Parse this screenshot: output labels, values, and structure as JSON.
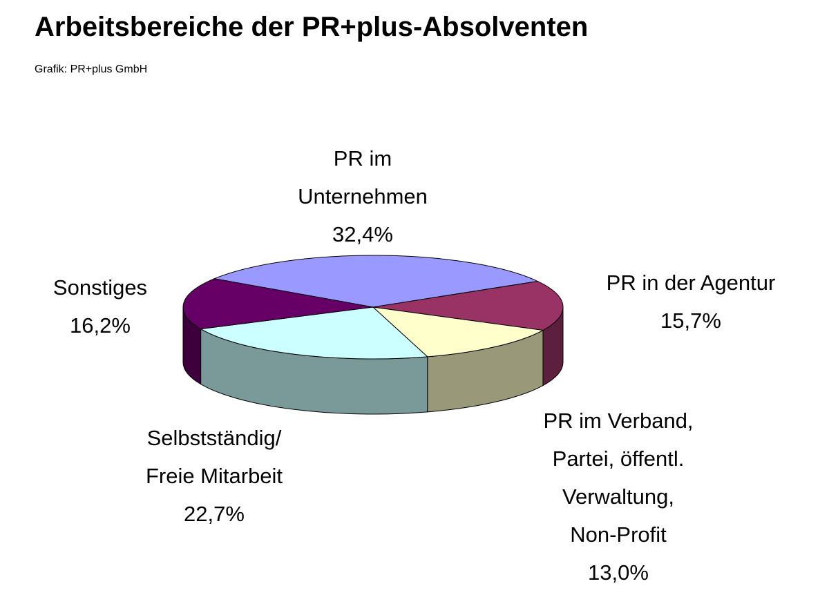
{
  "chart_data": {
    "type": "pie3d",
    "title": "Arbeitsbereiche der PR+plus-Absolventen",
    "subtitle": "Grafik: PR+plus GmbH",
    "categories": [
      "PR im\nUnternehmen",
      "PR in der Agentur",
      "PR im Verband,\nPartei, öffentl.\nVerwaltung,\nNon-Profit",
      "Selbstständig/\nFreie Mitarbeit",
      "Sonstiges"
    ],
    "values": [
      32.4,
      15.7,
      13.0,
      22.7,
      16.2
    ],
    "value_labels": [
      "32,4%",
      "15,7%",
      "13,0%",
      "22,7%",
      "16,2%"
    ],
    "colors": [
      "#9999ff",
      "#993366",
      "#ffffcc",
      "#ccffff",
      "#660066"
    ]
  }
}
